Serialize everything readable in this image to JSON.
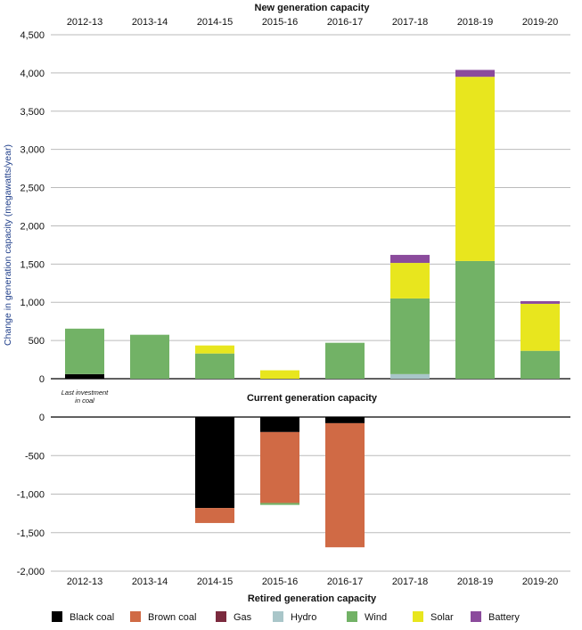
{
  "chart_data": {
    "type": "bar",
    "stacked": true,
    "categories": [
      "2012-13",
      "2013-14",
      "2014-15",
      "2015-16",
      "2016-17",
      "2017-18",
      "2018-19",
      "2019-20"
    ],
    "ylabel": "Change in generation capacity (megawatts/year)",
    "top_title": "New generation capacity",
    "middle_title": "Current generation capacity",
    "bottom_title": "Retired generation capacity",
    "annotation": [
      "Last investment",
      "in coal"
    ],
    "top_ylim": [
      0,
      4500
    ],
    "top_ticks": [
      "0",
      "500",
      "1,000",
      "1,500",
      "2,000",
      "2,500",
      "3,000",
      "3,500",
      "4,000",
      "4,500"
    ],
    "bottom_ylim": [
      -2000,
      0
    ],
    "bottom_ticks": [
      "0",
      "-500",
      "-1,000",
      "-1,500",
      "-2,000"
    ],
    "grid": true,
    "legend_position": "bottom",
    "series": [
      {
        "name": "Black coal",
        "color": "#000000",
        "new": [
          60,
          0,
          0,
          0,
          0,
          0,
          0,
          0
        ],
        "retired": [
          0,
          0,
          -1180,
          -195,
          -80,
          0,
          0,
          0
        ]
      },
      {
        "name": "Brown coal",
        "color": "#d06a45",
        "new": [
          0,
          0,
          0,
          0,
          0,
          0,
          0,
          0
        ],
        "retired": [
          0,
          0,
          -195,
          -920,
          -1610,
          0,
          0,
          0
        ]
      },
      {
        "name": "Gas",
        "color": "#7b2a3e",
        "new": [
          0,
          0,
          0,
          0,
          0,
          0,
          0,
          0
        ],
        "retired": [
          0,
          0,
          0,
          0,
          0,
          0,
          0,
          0
        ]
      },
      {
        "name": "Hydro",
        "color": "#a9c6c9",
        "new": [
          0,
          0,
          0,
          0,
          0,
          60,
          0,
          0
        ],
        "retired": [
          0,
          0,
          0,
          0,
          0,
          0,
          0,
          0
        ]
      },
      {
        "name": "Wind",
        "color": "#72b266",
        "new": [
          595,
          575,
          330,
          0,
          470,
          990,
          1540,
          365
        ],
        "retired": [
          0,
          0,
          0,
          -25,
          0,
          0,
          0,
          0
        ]
      },
      {
        "name": "Solar",
        "color": "#e8e61e",
        "new": [
          0,
          0,
          105,
          110,
          0,
          465,
          2410,
          615
        ],
        "retired": [
          0,
          0,
          0,
          0,
          0,
          0,
          0,
          0
        ]
      },
      {
        "name": "Battery",
        "color": "#8b4b9c",
        "new": [
          0,
          0,
          0,
          0,
          0,
          105,
          90,
          35
        ],
        "retired": [
          0,
          0,
          0,
          0,
          0,
          0,
          0,
          0
        ]
      }
    ]
  }
}
